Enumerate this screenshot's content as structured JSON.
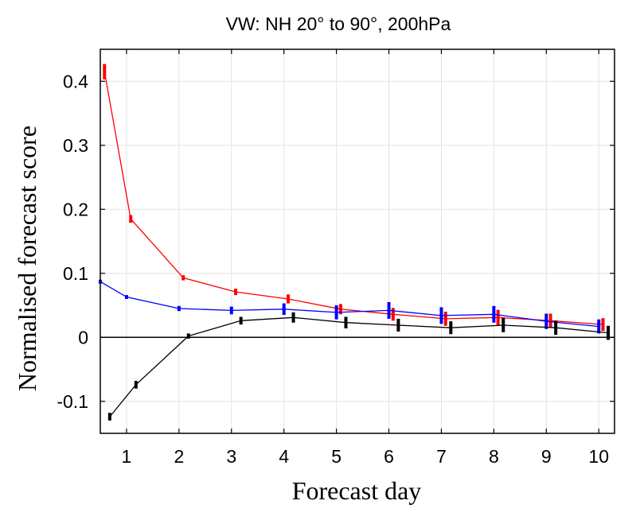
{
  "chart_data": {
    "type": "line",
    "title": "VW: NH 20° to 90°, 200hPa",
    "xlabel": "Forecast day",
    "ylabel": "Normalised forecast score",
    "xlim": [
      0.5,
      10.3
    ],
    "ylim": [
      -0.15,
      0.45
    ],
    "x_ticks": [
      1,
      2,
      3,
      4,
      5,
      6,
      7,
      8,
      9,
      10
    ],
    "x_tick_labels": [
      "1",
      "2",
      "3",
      "4",
      "5",
      "6",
      "7",
      "8",
      "9",
      "10"
    ],
    "y_ticks": [
      -0.1,
      0,
      0.1,
      0.2,
      0.3,
      0.4
    ],
    "y_tick_labels": [
      "-0.1",
      "0",
      "0.1",
      "0.2",
      "0.3",
      "0.4"
    ],
    "grid": true,
    "zero_line": true,
    "series": [
      {
        "color": "#ff0000",
        "x": [
          0.58,
          1.08,
          2.08,
          3.08,
          4.08,
          5.08,
          6.08,
          7.08,
          8.08,
          9.08,
          10.08
        ],
        "y": [
          0.415,
          0.185,
          0.093,
          0.071,
          0.06,
          0.044,
          0.036,
          0.029,
          0.031,
          0.026,
          0.02
        ],
        "err": [
          0.012,
          0.006,
          0.004,
          0.005,
          0.007,
          0.008,
          0.01,
          0.011,
          0.012,
          0.011,
          0.01
        ]
      },
      {
        "color": "#0000ff",
        "x": [
          0.5,
          1.0,
          2.0,
          3.0,
          4.0,
          5.0,
          6.0,
          7.0,
          8.0,
          9.0,
          10.0
        ],
        "y": [
          0.087,
          0.063,
          0.045,
          0.042,
          0.044,
          0.039,
          0.042,
          0.034,
          0.036,
          0.025,
          0.017
        ],
        "err": [
          0.003,
          0.003,
          0.004,
          0.006,
          0.009,
          0.011,
          0.013,
          0.013,
          0.013,
          0.012,
          0.011
        ]
      },
      {
        "color": "#000000",
        "x": [
          0.68,
          1.18,
          2.18,
          3.18,
          4.18,
          5.18,
          6.18,
          7.18,
          8.18,
          9.18,
          10.18
        ],
        "y": [
          -0.124,
          -0.074,
          0.002,
          0.026,
          0.031,
          0.023,
          0.019,
          0.015,
          0.019,
          0.015,
          0.007
        ],
        "err": [
          0.006,
          0.006,
          0.004,
          0.006,
          0.008,
          0.009,
          0.01,
          0.01,
          0.011,
          0.011,
          0.011
        ]
      }
    ]
  }
}
